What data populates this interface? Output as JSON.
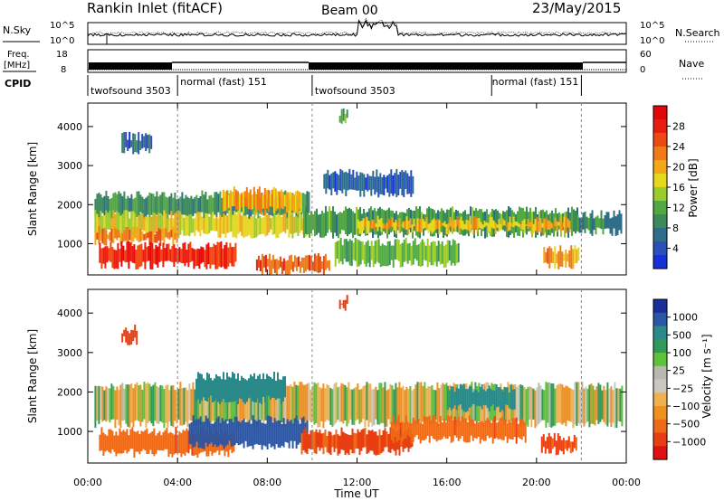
{
  "header": {
    "station": "Rankin Inlet (fitACF)",
    "beam": "Beam 00",
    "date": "23/May/2015"
  },
  "top_panels": {
    "nsky_label": "N.Sky",
    "nsearch_label": "N.Search",
    "freq_label_1": "Freq.",
    "freq_label_2": "[MHz]",
    "nave_label": "Nave",
    "cpid_label": "CPID",
    "noise_left_ticks": [
      "10^5",
      "10^0"
    ],
    "noise_right_ticks": [
      "10^5",
      "10^0"
    ],
    "freq_ticks": [
      "18",
      "8"
    ],
    "nave_ticks": [
      "60",
      "0"
    ],
    "cpid_segments": [
      {
        "label": "twofsound 3503",
        "start_h": 0.0,
        "end_h": 4.0
      },
      {
        "label": "normal (fast) 151",
        "start_h": 4.0,
        "end_h": 10.0
      },
      {
        "label": "twofsound 3503",
        "start_h": 10.0,
        "end_h": 18.0
      },
      {
        "label": "normal (fast) 151",
        "start_h": 18.0,
        "end_h": 22.0
      }
    ]
  },
  "axes": {
    "ylabel": "Slant Range [km]",
    "xlabel": "Time UT",
    "xticks": [
      "00:00",
      "04:00",
      "08:00",
      "12:00",
      "16:00",
      "20:00",
      "00:00"
    ],
    "yticks": [
      "1000",
      "2000",
      "3000",
      "4000"
    ]
  },
  "power_colorbar": {
    "label": "Power [dB]",
    "ticks": [
      "4",
      "8",
      "12",
      "16",
      "20",
      "24",
      "28"
    ],
    "colors": [
      "#1530d8",
      "#2a4fb8",
      "#2f6e8a",
      "#3a8a5a",
      "#52a842",
      "#9ccc2c",
      "#e8d81c",
      "#f2a818",
      "#f07a14",
      "#ec4a12",
      "#e81c10",
      "#e00808"
    ]
  },
  "velocity_colorbar": {
    "label": "Velocity [m s⁻¹]",
    "ticks": [
      "1000",
      "500",
      "100",
      "25",
      "−25",
      "−100",
      "−500",
      "−1000"
    ],
    "colors": [
      "#1a2e9c",
      "#2a56a8",
      "#2a8a8a",
      "#2f9a5a",
      "#5cc23a",
      "#b8b8b0",
      "#c8c8c0",
      "#f0b050",
      "#f0901e",
      "#ee6a16",
      "#e83e12",
      "#e01010"
    ]
  },
  "chart_data": {
    "type": "heatmap",
    "x_unit": "hours UT",
    "xlim": [
      0,
      24
    ],
    "ylim": [
      200,
      4600
    ],
    "grid": false,
    "panels": [
      {
        "name": "power",
        "regions": [
          {
            "t0": 0.3,
            "t1": 9.9,
            "r0": 1700,
            "r1": 2250,
            "value": 10
          },
          {
            "t0": 0.3,
            "t1": 9.8,
            "r0": 1250,
            "r1": 1750,
            "value": 17
          },
          {
            "t0": 0.3,
            "t1": 4.0,
            "r0": 1050,
            "r1": 1350,
            "value": 22
          },
          {
            "t0": 0.5,
            "t1": 6.6,
            "r0": 450,
            "r1": 950,
            "value": 27
          },
          {
            "t0": 6.0,
            "t1": 9.5,
            "r0": 1850,
            "r1": 2350,
            "value": 20
          },
          {
            "t0": 7.5,
            "t1": 10.8,
            "r0": 300,
            "r1": 650,
            "value": 24
          },
          {
            "t0": 9.6,
            "t1": 21.8,
            "r0": 1250,
            "r1": 1850,
            "value": 11
          },
          {
            "t0": 12.0,
            "t1": 21.5,
            "r0": 1350,
            "r1": 1600,
            "value": 19
          },
          {
            "t0": 11.0,
            "t1": 16.5,
            "r0": 500,
            "r1": 1050,
            "value": 13
          },
          {
            "t0": 20.3,
            "t1": 21.9,
            "r0": 450,
            "r1": 850,
            "value": 21
          },
          {
            "t0": 21.8,
            "t1": 23.8,
            "r0": 1300,
            "r1": 1750,
            "value": 9
          },
          {
            "t0": 1.5,
            "t1": 2.8,
            "r0": 3400,
            "r1": 3750,
            "value": 6
          },
          {
            "t0": 11.2,
            "t1": 11.6,
            "r0": 4150,
            "r1": 4350,
            "value": 12
          },
          {
            "t0": 10.5,
            "t1": 14.5,
            "r0": 2300,
            "r1": 2800,
            "value": 5
          }
        ]
      },
      {
        "name": "velocity",
        "regions": [
          {
            "t0": 0.3,
            "t1": 23.8,
            "r0": 1200,
            "r1": 2150,
            "value": 0
          },
          {
            "t0": 0.5,
            "t1": 6.5,
            "r0": 450,
            "r1": 1000,
            "value": -120
          },
          {
            "t0": 4.5,
            "t1": 9.8,
            "r0": 650,
            "r1": 1300,
            "value": 300
          },
          {
            "t0": 4.8,
            "t1": 8.8,
            "r0": 1800,
            "r1": 2400,
            "value": 80
          },
          {
            "t0": 9.5,
            "t1": 14.5,
            "r0": 500,
            "r1": 1000,
            "value": -180
          },
          {
            "t0": 13.5,
            "t1": 19.5,
            "r0": 800,
            "r1": 1300,
            "value": -120
          },
          {
            "t0": 16.0,
            "t1": 19.0,
            "r0": 1600,
            "r1": 2100,
            "value": 60
          },
          {
            "t0": 20.2,
            "t1": 21.8,
            "r0": 500,
            "r1": 850,
            "value": -200
          },
          {
            "t0": 1.5,
            "t1": 2.2,
            "r0": 3300,
            "r1": 3600,
            "value": -250
          },
          {
            "t0": 11.2,
            "t1": 11.6,
            "r0": 4150,
            "r1": 4350,
            "value": -300
          }
        ]
      }
    ]
  }
}
